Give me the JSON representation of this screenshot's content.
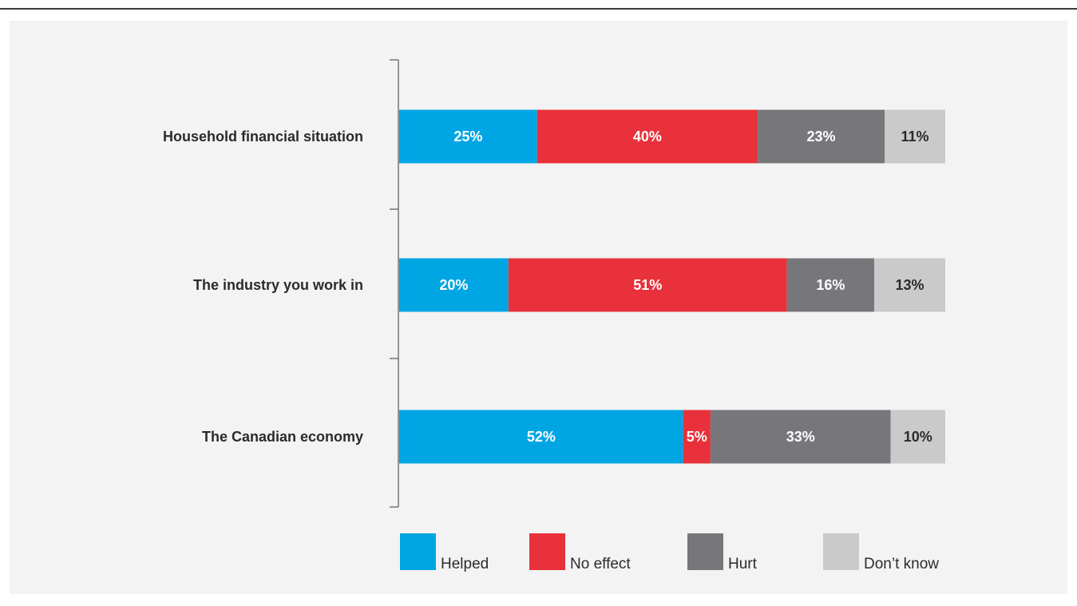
{
  "chart_data": {
    "type": "bar",
    "orientation": "horizontal",
    "stacked": true,
    "unit": "%",
    "title": "",
    "xlabel": "",
    "ylabel": "",
    "xlim": [
      0,
      100
    ],
    "grid": false,
    "legend_position": "bottom",
    "categories": [
      "Household financial situation",
      "The industry you work in",
      "The Canadian economy"
    ],
    "series": [
      {
        "name": "Helped",
        "color": "#00a5e3",
        "label_color": "#ffffff",
        "values": [
          25,
          20,
          52
        ]
      },
      {
        "name": "No effect",
        "color": "#e8313a",
        "label_color": "#ffffff",
        "values": [
          40,
          51,
          5
        ]
      },
      {
        "name": "Hurt",
        "color": "#77777b",
        "label_color": "#ffffff",
        "values": [
          23,
          16,
          33
        ]
      },
      {
        "name": "Don’t know",
        "color": "#cacaca",
        "label_color": "#2b2b2b",
        "values": [
          11,
          13,
          10
        ]
      }
    ]
  }
}
